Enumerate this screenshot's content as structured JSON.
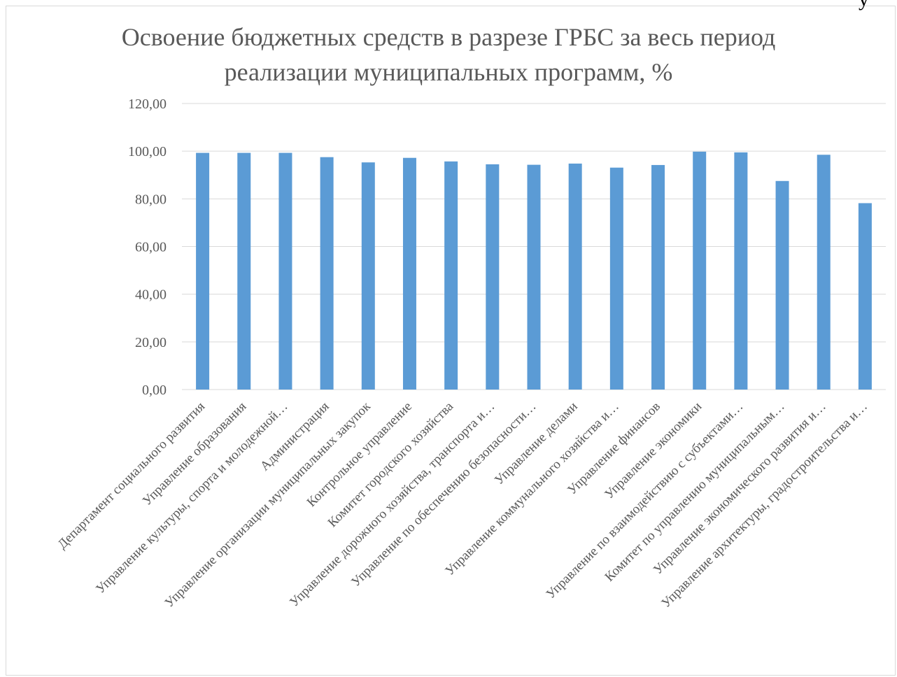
{
  "chart_data": {
    "type": "bar",
    "title_lines": [
      "Освоение бюджетных средств в разрезе ГРБС за весь период",
      "реализации муниципальных программ, %"
    ],
    "categories": [
      "Департамент социального развития",
      "Управление образования",
      "Управление культуры, спорта и молодежной…",
      "Администрация",
      "Управление организации муниципальных закупок",
      "Контрольное управление",
      "Комитет городского хозяйства",
      "Управление дорожного хозяйства, транспорта и…",
      "Управление по обеспечению безопасности…",
      "Управление делами",
      "Управление коммунального хозяйства и…",
      "Управление финансов",
      "Управление экономики",
      "Управление по взаимодействию с субъектами…",
      "Комитет по управлению муниципальным…",
      "Управление экономического развития и…",
      "Управление архитектуры, градостроительства и…"
    ],
    "values": [
      99.3,
      99.3,
      99.3,
      97.5,
      95.3,
      97.2,
      95.7,
      94.5,
      94.3,
      94.8,
      93.1,
      94.2,
      99.8,
      99.5,
      87.5,
      98.5,
      78.2
    ],
    "ylim": [
      0,
      120
    ],
    "yticks": [
      "0,00",
      "20,00",
      "40,00",
      "60,00",
      "80,00",
      "100,00",
      "120,00"
    ],
    "grid": true,
    "bar_color": "#5b9bd5",
    "grid_color": "#d9d9d9",
    "text_color": "#595959"
  },
  "corner_glyph": "у"
}
